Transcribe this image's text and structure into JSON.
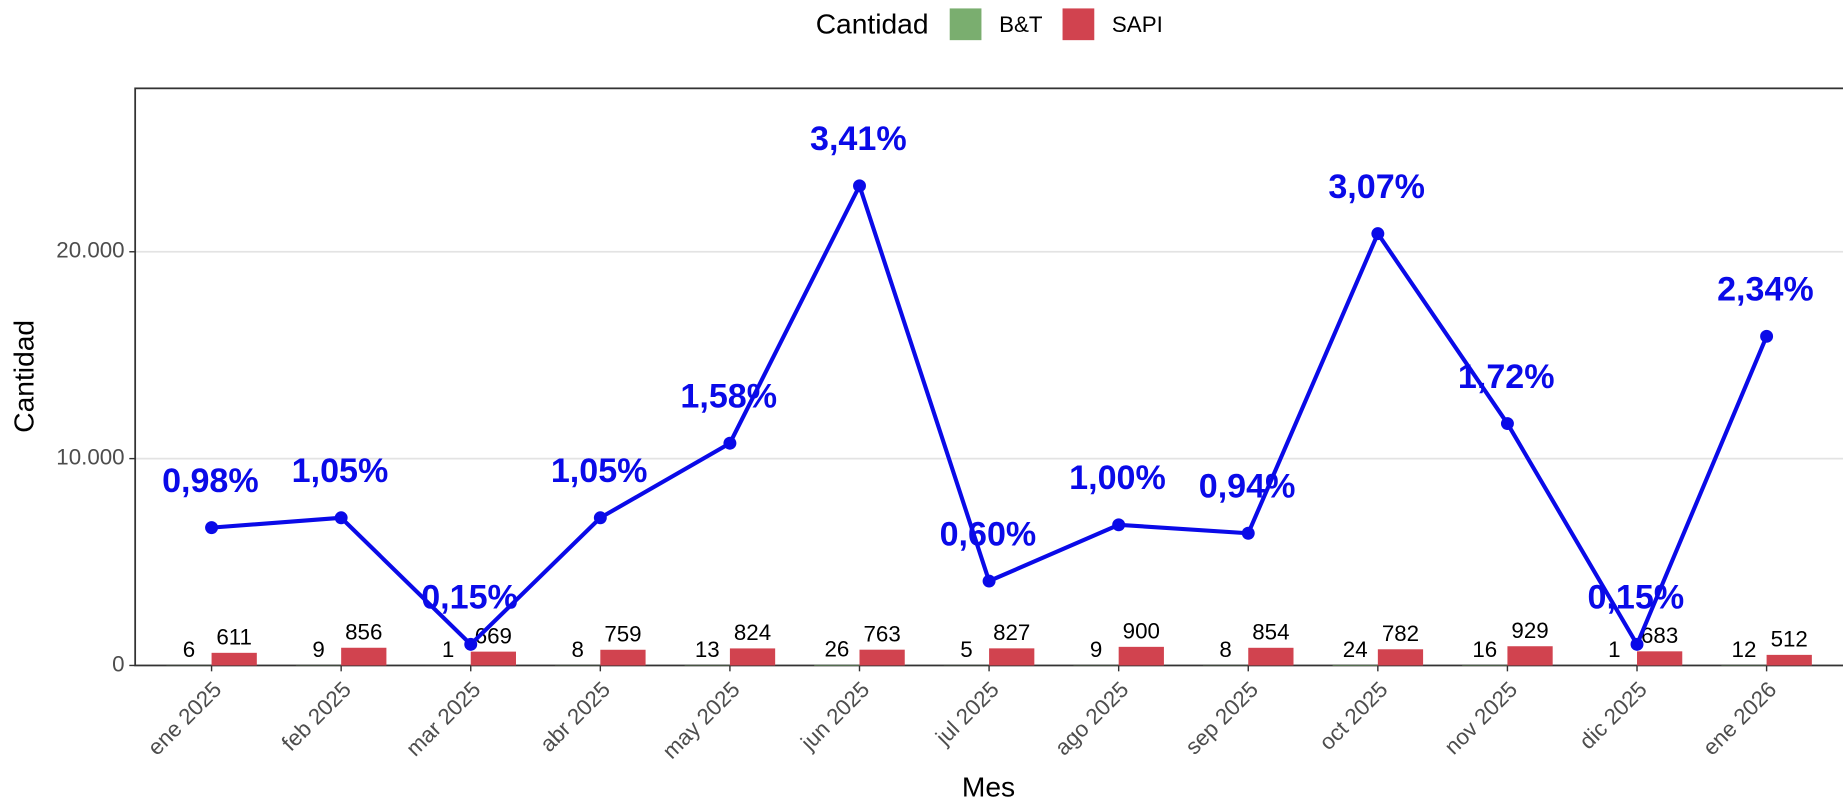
{
  "chart_data": {
    "type": "bar",
    "legend_title": "Cantidad",
    "x_label": "Mes",
    "y_label": "Cantidad",
    "categories": [
      "ene 2025",
      "feb 2025",
      "mar 2025",
      "abr 2025",
      "may 2025",
      "jun 2025",
      "jul 2025",
      "ago 2025",
      "sep 2025",
      "oct 2025",
      "nov 2025",
      "dic 2025",
      "ene 2026"
    ],
    "series": [
      {
        "name": "B&T",
        "color": "#7aae6f",
        "values": [
          6,
          9,
          1,
          8,
          13,
          26,
          5,
          9,
          8,
          24,
          16,
          1,
          12
        ]
      },
      {
        "name": "SAPI",
        "color": "#d1434f",
        "values": [
          611,
          856,
          669,
          759,
          824,
          763,
          827,
          900,
          854,
          782,
          929,
          683,
          512
        ]
      },
      {
        "type": "line",
        "axis": "y2",
        "color": "#0a0ae8",
        "values": [
          0.98,
          1.05,
          0.15,
          1.05,
          1.58,
          3.41,
          0.6,
          1.0,
          0.94,
          3.07,
          1.72,
          0.15,
          2.34
        ],
        "value_labels": [
          "0,98%",
          "1,05%",
          "0,15%",
          "1,05%",
          "1,58%",
          "3,41%",
          "0,60%",
          "1,00%",
          "0,94%",
          "3,07%",
          "1,72%",
          "0,15%",
          "2,34%"
        ]
      }
    ],
    "ylim": [
      0,
      27900
    ],
    "yticks": [
      0,
      {
        "value": 10000,
        "label": "10.000"
      },
      {
        "value": 20000,
        "label": "20.000"
      }
    ],
    "y2lim": [
      0,
      4.103
    ],
    "grid": true
  }
}
